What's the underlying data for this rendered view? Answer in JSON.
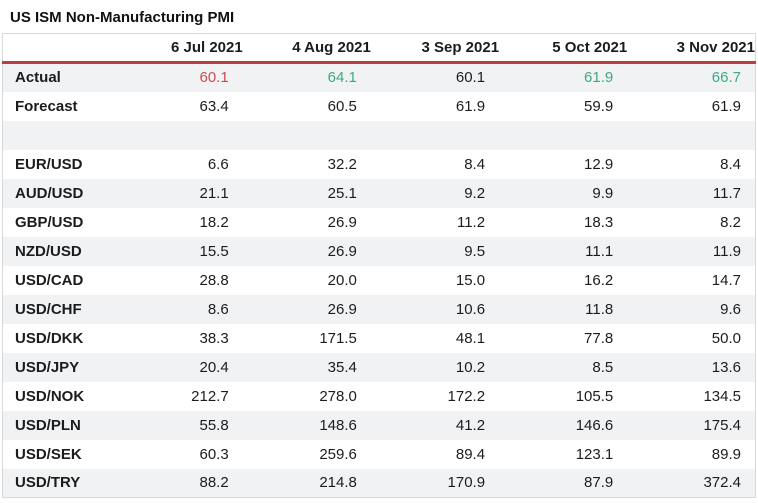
{
  "page_title": "US ISM Non-Manufacturing PMI",
  "colors": {
    "default": "#1c1c1c",
    "negative": "#d14b4d",
    "positive": "#3eab7e",
    "header_rule": "#bb3e45",
    "row_stripe": "#f0f2f3",
    "table_border": "#d9d9d9"
  },
  "chart_data": {
    "type": "table",
    "title": "US ISM Non-Manufacturing PMI",
    "columns": [
      "",
      "6 Jul 2021",
      "4 Aug 2021",
      "3 Sep 2021",
      "5 Oct 2021",
      "3 Nov 2021"
    ],
    "rows": [
      {
        "label": "Actual",
        "values": [
          "60.1",
          "64.1",
          "60.1",
          "61.9",
          "66.7"
        ],
        "value_colors": [
          "negative",
          "positive",
          "default",
          "positive",
          "positive"
        ]
      },
      {
        "label": "Forecast",
        "values": [
          "63.4",
          "60.5",
          "61.9",
          "59.9",
          "61.9"
        ]
      },
      {
        "label": "",
        "values": [
          "",
          "",
          "",
          "",
          ""
        ],
        "spacer": true
      },
      {
        "label": "EUR/USD",
        "values": [
          "6.6",
          "32.2",
          "8.4",
          "12.9",
          "8.4"
        ]
      },
      {
        "label": "AUD/USD",
        "values": [
          "21.1",
          "25.1",
          "9.2",
          "9.9",
          "11.7"
        ]
      },
      {
        "label": "GBP/USD",
        "values": [
          "18.2",
          "26.9",
          "11.2",
          "18.3",
          "8.2"
        ]
      },
      {
        "label": "NZD/USD",
        "values": [
          "15.5",
          "26.9",
          "9.5",
          "11.1",
          "11.9"
        ]
      },
      {
        "label": "USD/CAD",
        "values": [
          "28.8",
          "20.0",
          "15.0",
          "16.2",
          "14.7"
        ]
      },
      {
        "label": "USD/CHF",
        "values": [
          "8.6",
          "26.9",
          "10.6",
          "11.8",
          "9.6"
        ]
      },
      {
        "label": "USD/DKK",
        "values": [
          "38.3",
          "171.5",
          "48.1",
          "77.8",
          "50.0"
        ]
      },
      {
        "label": "USD/JPY",
        "values": [
          "20.4",
          "35.4",
          "10.2",
          "8.5",
          "13.6"
        ]
      },
      {
        "label": "USD/NOK",
        "values": [
          "212.7",
          "278.0",
          "172.2",
          "105.5",
          "134.5"
        ]
      },
      {
        "label": "USD/PLN",
        "values": [
          "55.8",
          "148.6",
          "41.2",
          "146.6",
          "175.4"
        ]
      },
      {
        "label": "USD/SEK",
        "values": [
          "60.3",
          "259.6",
          "89.4",
          "123.1",
          "89.9"
        ]
      },
      {
        "label": "USD/TRY",
        "values": [
          "88.2",
          "214.8",
          "170.9",
          "87.9",
          "372.4"
        ]
      }
    ]
  }
}
